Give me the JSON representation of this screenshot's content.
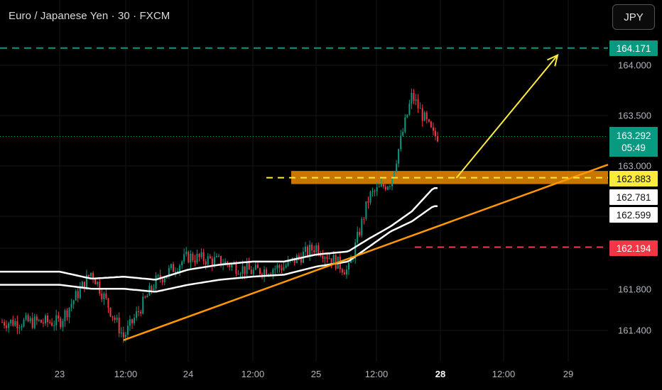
{
  "header": {
    "title": "Euro / Japanese Yen · 30 · FXCM"
  },
  "currency_button": {
    "label": "JPY"
  },
  "price_axis": {
    "ticks": [
      "164.000",
      "163.500",
      "163.000",
      "161.800",
      "161.400"
    ]
  },
  "time_axis": {
    "ticks": [
      "23",
      "12:00",
      "24",
      "12:00",
      "25",
      "12:00",
      "28",
      "12:00",
      "29"
    ]
  },
  "price_tags": {
    "target": "164.171",
    "current": "163.292",
    "countdown": "05:49",
    "resistance": "162.883",
    "ma_fast": "162.781",
    "ma_slow": "162.599",
    "stop": "162.194"
  },
  "colors": {
    "background": "#000000",
    "up_candle": "#089981",
    "down_candle": "#f23645",
    "target_line": "#089981",
    "resistance_line": "#ffeb3b",
    "stop_line": "#f23645",
    "trendline": "#ff9800",
    "zone": "#ff9800",
    "moving_averages": "#ffffff",
    "arrow": "#ffeb3b"
  },
  "chart_data": {
    "type": "line",
    "title": "Euro / Japanese Yen · 30 · FXCM",
    "xlabel": "",
    "ylabel": "",
    "ylim": [
      161.2,
      164.3
    ],
    "grid": true,
    "x": [
      "23 00:00",
      "23 06:00",
      "23 12:00",
      "23 18:00",
      "24 00:00",
      "24 06:00",
      "24 12:00",
      "24 18:00",
      "25 00:00",
      "25 06:00",
      "25 10:00",
      "25 14:00",
      "25 18:00",
      "25 22:00"
    ],
    "series": [
      {
        "values": [
          161.45,
          161.95,
          161.3,
          161.85,
          162.1,
          162.05,
          161.95,
          162.0,
          162.2,
          161.95,
          162.7,
          162.85,
          163.7,
          163.3
        ]
      }
    ],
    "ma_fast": [
      161.95,
      161.88,
      161.9,
      161.87,
      161.97,
      162.02,
      162.05,
      162.05,
      162.12,
      162.15,
      162.28,
      162.4,
      162.55,
      162.78
    ],
    "ma_slow": [
      161.82,
      161.78,
      161.78,
      161.75,
      161.82,
      161.87,
      161.9,
      161.92,
      162.0,
      162.05,
      162.2,
      162.35,
      162.45,
      162.6
    ],
    "levels": {
      "target": 164.171,
      "current": 163.292,
      "resistance": 162.883,
      "stop": 162.194
    },
    "zone": [
      162.82,
      162.95
    ],
    "trendline": {
      "from": [
        "23 12:00",
        161.27
      ],
      "to": [
        "29 12:00",
        163.1
      ]
    },
    "projection_arrow": {
      "from": [
        "28 03:00",
        162.88
      ],
      "to": [
        "28 22:00",
        164.1
      ]
    }
  }
}
